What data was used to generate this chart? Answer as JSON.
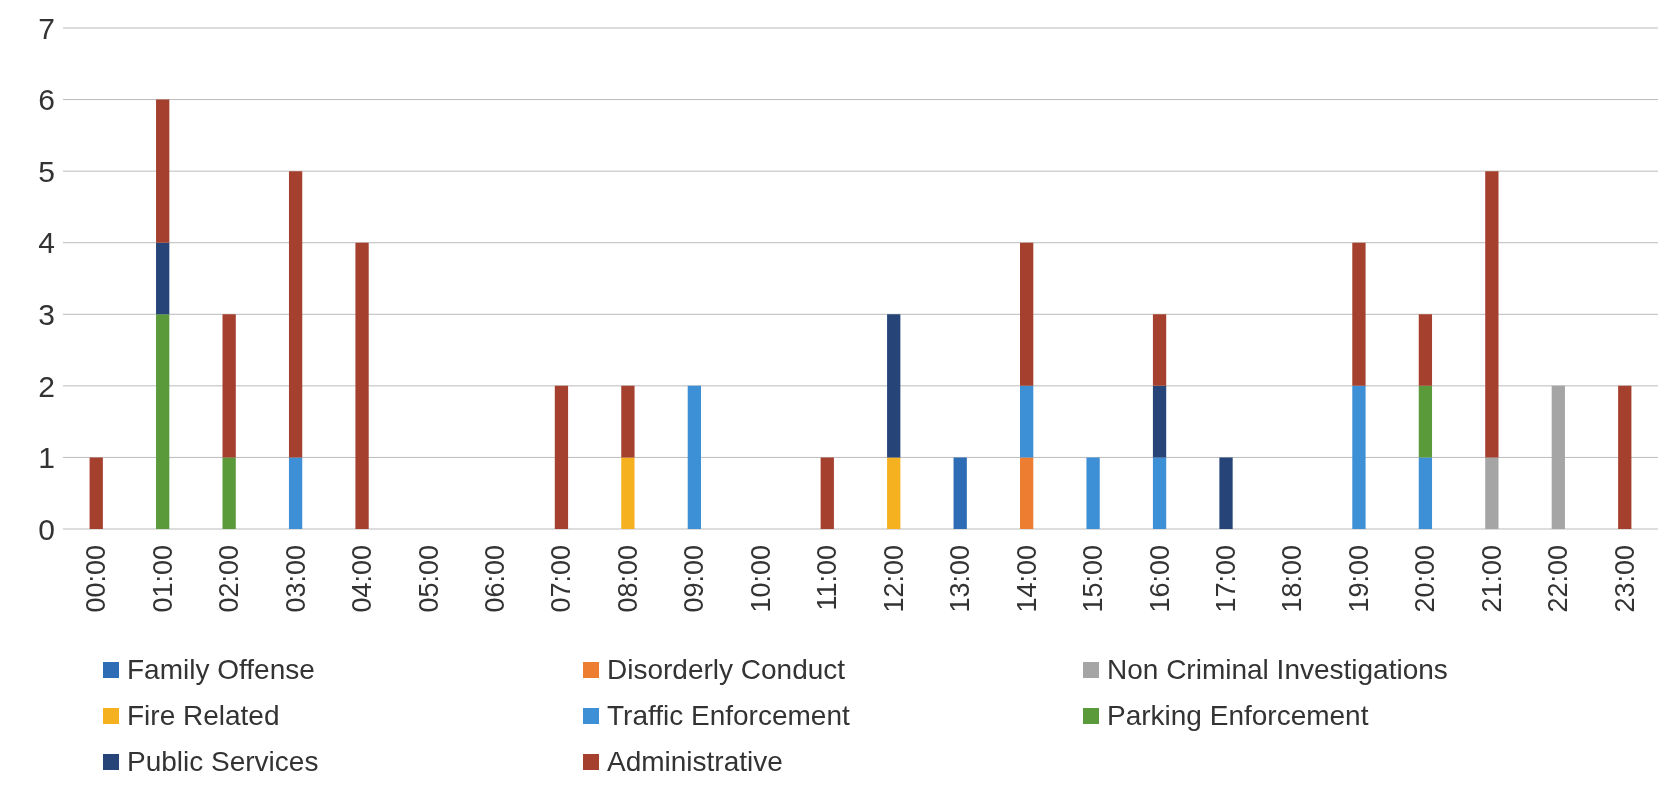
{
  "chart_data": {
    "type": "bar",
    "stacked": true,
    "categories": [
      "00:00",
      "01:00",
      "02:00",
      "03:00",
      "04:00",
      "05:00",
      "06:00",
      "07:00",
      "08:00",
      "09:00",
      "10:00",
      "11:00",
      "12:00",
      "13:00",
      "14:00",
      "15:00",
      "16:00",
      "17:00",
      "18:00",
      "19:00",
      "20:00",
      "21:00",
      "22:00",
      "23:00"
    ],
    "series": [
      {
        "name": "Family Offense",
        "color": "#2e6db5",
        "values": [
          0,
          0,
          0,
          0,
          0,
          0,
          0,
          0,
          0,
          0,
          0,
          0,
          0,
          1,
          0,
          0,
          0,
          0,
          0,
          0,
          0,
          0,
          0,
          0
        ]
      },
      {
        "name": "Disorderly Conduct",
        "color": "#ed7d31",
        "values": [
          0,
          0,
          0,
          0,
          0,
          0,
          0,
          0,
          0,
          0,
          0,
          0,
          0,
          0,
          1,
          0,
          0,
          0,
          0,
          0,
          0,
          0,
          0,
          0
        ]
      },
      {
        "name": "Non Criminal Investigations",
        "color": "#a5a5a5",
        "values": [
          0,
          0,
          0,
          0,
          0,
          0,
          0,
          0,
          0,
          0,
          0,
          0,
          0,
          0,
          0,
          0,
          0,
          0,
          0,
          0,
          0,
          1,
          2,
          0
        ]
      },
      {
        "name": "Fire Related",
        "color": "#f5b120",
        "values": [
          0,
          0,
          0,
          0,
          0,
          0,
          0,
          0,
          1,
          0,
          0,
          0,
          1,
          0,
          0,
          0,
          0,
          0,
          0,
          0,
          0,
          0,
          0,
          0
        ]
      },
      {
        "name": "Traffic Enforcement",
        "color": "#3d8fd6",
        "values": [
          0,
          0,
          0,
          1,
          0,
          0,
          0,
          0,
          0,
          2,
          0,
          0,
          0,
          0,
          1,
          1,
          1,
          0,
          0,
          2,
          1,
          0,
          0,
          0
        ]
      },
      {
        "name": "Parking Enforcement",
        "color": "#5a9a3a",
        "values": [
          0,
          3,
          1,
          0,
          0,
          0,
          0,
          0,
          0,
          0,
          0,
          0,
          0,
          0,
          0,
          0,
          0,
          0,
          0,
          0,
          1,
          0,
          0,
          0
        ]
      },
      {
        "name": "Public Services",
        "color": "#264478",
        "values": [
          0,
          1,
          0,
          0,
          0,
          0,
          0,
          0,
          0,
          0,
          0,
          0,
          2,
          0,
          0,
          0,
          1,
          1,
          0,
          0,
          0,
          0,
          0,
          0
        ]
      },
      {
        "name": "Administrative",
        "color": "#a5402e",
        "values": [
          1,
          2,
          2,
          4,
          4,
          0,
          0,
          2,
          1,
          0,
          0,
          1,
          0,
          0,
          2,
          0,
          1,
          0,
          0,
          2,
          1,
          4,
          0,
          2
        ]
      }
    ],
    "ylim": [
      0,
      7
    ],
    "yticks": [
      0,
      1,
      2,
      3,
      4,
      5,
      6,
      7
    ],
    "grid": "y",
    "legend": "bottom"
  }
}
